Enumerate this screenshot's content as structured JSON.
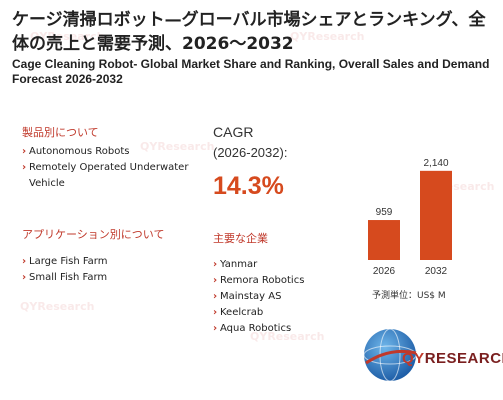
{
  "title_jp": "ケージ清掃ロボット—グローバル市場シェアとランキング、全体の売上と需要予測、2026〜2032",
  "title_en": "Cage Cleaning Robot- Global Market Share and Ranking, Overall Sales and Demand Forecast 2026-2032",
  "products": {
    "heading": "製品別について",
    "items": [
      "Autonomous Robots",
      "Remotely Operated Underwater Vehicle"
    ]
  },
  "applications": {
    "heading": "アプリケーション別について",
    "items": [
      "Large Fish Farm",
      "Small Fish Farm"
    ]
  },
  "cagr": {
    "label": "CAGR",
    "period": "(2026-2032):",
    "value": "14.3%"
  },
  "companies": {
    "heading": "主要な企業",
    "items": [
      "Yanmar",
      "Remora Robotics",
      "Mainstay AS",
      "Keelcrab",
      "Aqua Robotics"
    ]
  },
  "chart_data": {
    "type": "bar",
    "categories": [
      "2026",
      "2032"
    ],
    "values": [
      959,
      2140
    ],
    "value_labels": [
      "959",
      "2,140"
    ],
    "ylim": [
      0,
      2400
    ],
    "bar_color": "#d64a1e",
    "grid": false
  },
  "unit_note": "予測単位：US$ M",
  "logo": {
    "q": "QY",
    "rest": "RESEARCH"
  }
}
